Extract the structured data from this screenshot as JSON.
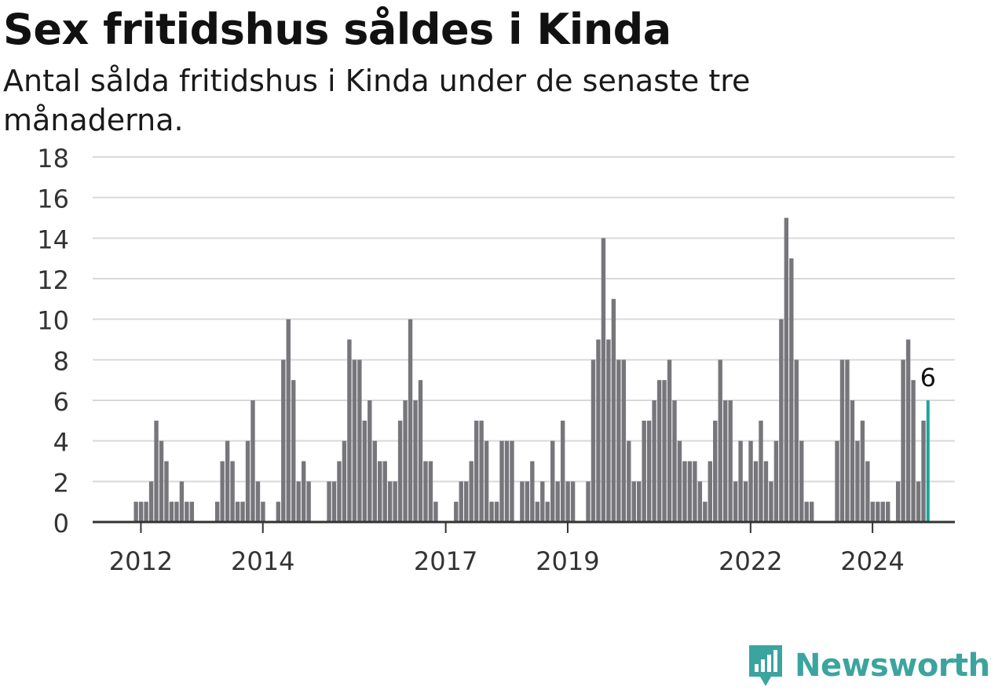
{
  "title": "Sex fritidshus såldes i Kinda",
  "subtitle": "Antal sålda fritidshus i Kinda under de senaste tre månaderna.",
  "brand": {
    "name": "Newsworthy",
    "icon": "newsworthy-logo-icon",
    "color": "#3ca49e"
  },
  "colors": {
    "bar": "#77767b",
    "highlight": "#1aa59b",
    "grid": "#d9d9d9",
    "axis": "#333333"
  },
  "chart_data": {
    "type": "bar",
    "title": "Sex fritidshus såldes i Kinda",
    "ylim": [
      0,
      18
    ],
    "yticks": [
      0,
      2,
      4,
      6,
      8,
      10,
      12,
      14,
      16,
      18
    ],
    "grid": true,
    "x_tick_labels": [
      {
        "label": "2012",
        "index": 2
      },
      {
        "label": "2014",
        "index": 26
      },
      {
        "label": "2017",
        "index": 62
      },
      {
        "label": "2019",
        "index": 86
      },
      {
        "label": "2022",
        "index": 122
      },
      {
        "label": "2024",
        "index": 146
      }
    ],
    "values": [
      0,
      1,
      1,
      1,
      2,
      5,
      4,
      3,
      1,
      1,
      2,
      1,
      1,
      0,
      0,
      0,
      0,
      1,
      3,
      4,
      3,
      1,
      1,
      4,
      6,
      2,
      1,
      0,
      0,
      1,
      8,
      10,
      7,
      2,
      3,
      2,
      0,
      0,
      0,
      2,
      2,
      3,
      4,
      9,
      8,
      8,
      5,
      6,
      4,
      3,
      3,
      2,
      2,
      5,
      6,
      10,
      6,
      7,
      3,
      3,
      1,
      0,
      0,
      0,
      1,
      2,
      2,
      3,
      5,
      5,
      4,
      1,
      1,
      4,
      4,
      4,
      0,
      2,
      2,
      3,
      1,
      2,
      1,
      4,
      2,
      5,
      2,
      2,
      0,
      0,
      2,
      8,
      9,
      14,
      9,
      11,
      8,
      8,
      4,
      2,
      2,
      5,
      5,
      6,
      7,
      7,
      8,
      6,
      4,
      3,
      3,
      3,
      2,
      1,
      3,
      5,
      8,
      6,
      6,
      2,
      4,
      2,
      4,
      3,
      5,
      3,
      2,
      4,
      10,
      15,
      13,
      8,
      4,
      1,
      1,
      0,
      0,
      0,
      0,
      4,
      8,
      8,
      6,
      4,
      5,
      3,
      1,
      1,
      1,
      1,
      0,
      2,
      8,
      9,
      7,
      2,
      5,
      6
    ],
    "highlight": {
      "label": "6",
      "value": 6
    }
  }
}
